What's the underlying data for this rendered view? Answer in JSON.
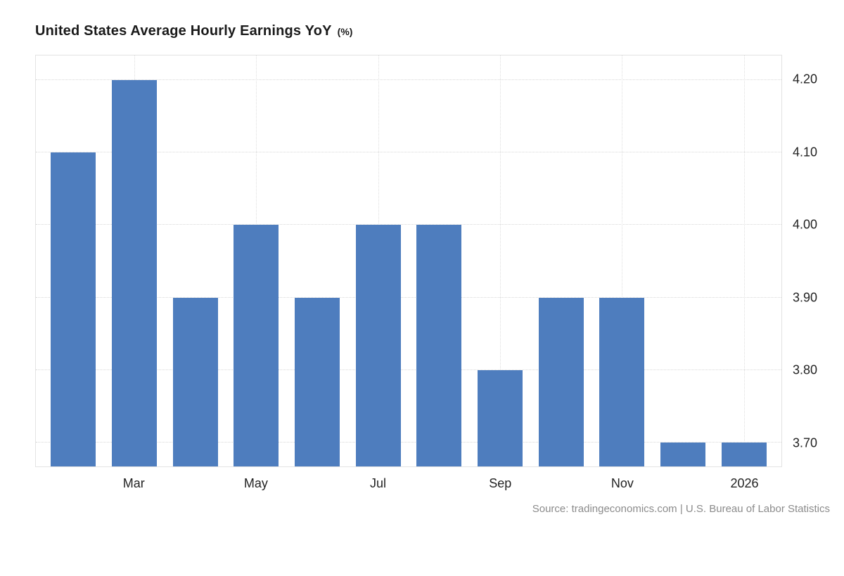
{
  "title": {
    "main": "United States Average Hourly Earnings YoY",
    "unit": "(%)"
  },
  "source": "Source: tradingeconomics.com | U.S. Bureau of Labor Statistics",
  "colors": {
    "bar": "#4e7dbe",
    "grid": "#d8d8d8",
    "axis_text": "#222222",
    "source_text": "#8b8b8b"
  },
  "chart_data": {
    "type": "bar",
    "title": "United States Average Hourly Earnings YoY (%)",
    "categories": [
      "",
      "Mar",
      "",
      "May",
      "",
      "Jul",
      "",
      "Sep",
      "",
      "Nov",
      "",
      "2026"
    ],
    "values": [
      4.1,
      4.2,
      3.9,
      4.0,
      3.9,
      4.0,
      4.0,
      3.8,
      3.9,
      3.9,
      3.7,
      3.7
    ],
    "xlabel": "",
    "ylabel": "",
    "ylim": [
      3.667,
      4.234
    ],
    "yticks": [
      3.7,
      3.8,
      3.9,
      4.0,
      4.1,
      4.2
    ],
    "grid": "dotted",
    "legend_position": "none",
    "y_axis_side": "right"
  }
}
